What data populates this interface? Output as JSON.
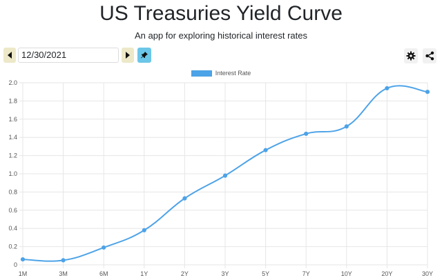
{
  "header": {
    "title": "US Treasuries Yield Curve",
    "subtitle": "An app for exploring historical interest rates"
  },
  "controls": {
    "date_value": "12/30/2021",
    "prev_icon": "caret-left-icon",
    "next_icon": "caret-right-icon",
    "pin_icon": "pin-icon",
    "settings_icon": "gear-icon",
    "share_icon": "share-icon"
  },
  "colors": {
    "line": "#4da3e8",
    "nav_button_bg": "#ede8c8",
    "pin_button_bg": "#6cc6e8"
  },
  "chart_data": {
    "type": "line",
    "categories": [
      "1M",
      "3M",
      "6M",
      "1Y",
      "2Y",
      "3Y",
      "5Y",
      "7Y",
      "10Y",
      "20Y",
      "30Y"
    ],
    "series": [
      {
        "name": "Interest Rate",
        "values": [
          0.06,
          0.05,
          0.19,
          0.38,
          0.73,
          0.98,
          1.26,
          1.44,
          1.52,
          1.94,
          1.9
        ]
      }
    ],
    "ylim": [
      0,
      2.0
    ],
    "yticks": [
      "0",
      "0.2",
      "0.4",
      "0.6",
      "0.8",
      "1.0",
      "1.2",
      "1.4",
      "1.6",
      "1.8",
      "2.0"
    ],
    "grid": true,
    "legend": "top-center",
    "smooth": true
  }
}
